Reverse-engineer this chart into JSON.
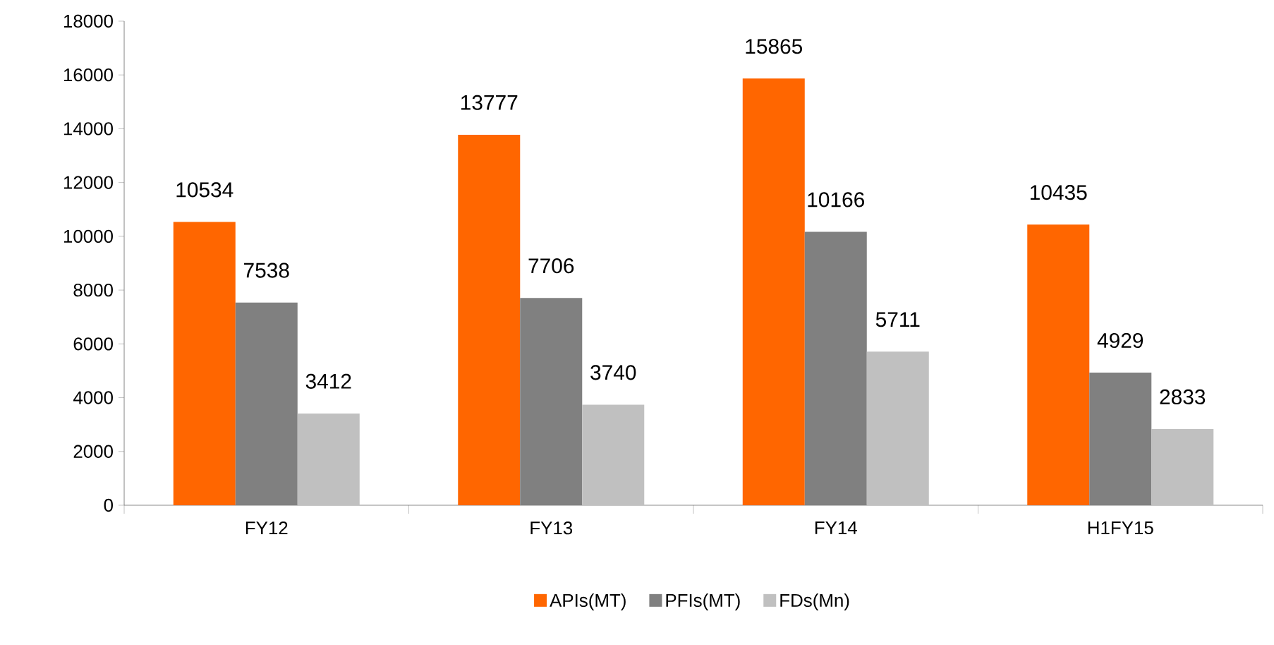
{
  "chart_data": {
    "type": "bar",
    "categories": [
      "FY12",
      "FY13",
      "FY14",
      "H1FY15"
    ],
    "series": [
      {
        "name": "APIs(MT)",
        "color": "#ff6600",
        "values": [
          10534,
          13777,
          15865,
          10435
        ]
      },
      {
        "name": "PFIs(MT)",
        "color": "#808080",
        "values": [
          7538,
          7706,
          10166,
          4929
        ]
      },
      {
        "name": "FDs(Mn)",
        "color": "#c0c0c0",
        "values": [
          3412,
          3740,
          5711,
          2833
        ]
      }
    ],
    "ylim": [
      0,
      18000
    ],
    "yticks": [
      0,
      2000,
      4000,
      6000,
      8000,
      10000,
      12000,
      14000,
      16000,
      18000
    ],
    "data_labels": true,
    "grid": false,
    "legend": "bottom"
  }
}
